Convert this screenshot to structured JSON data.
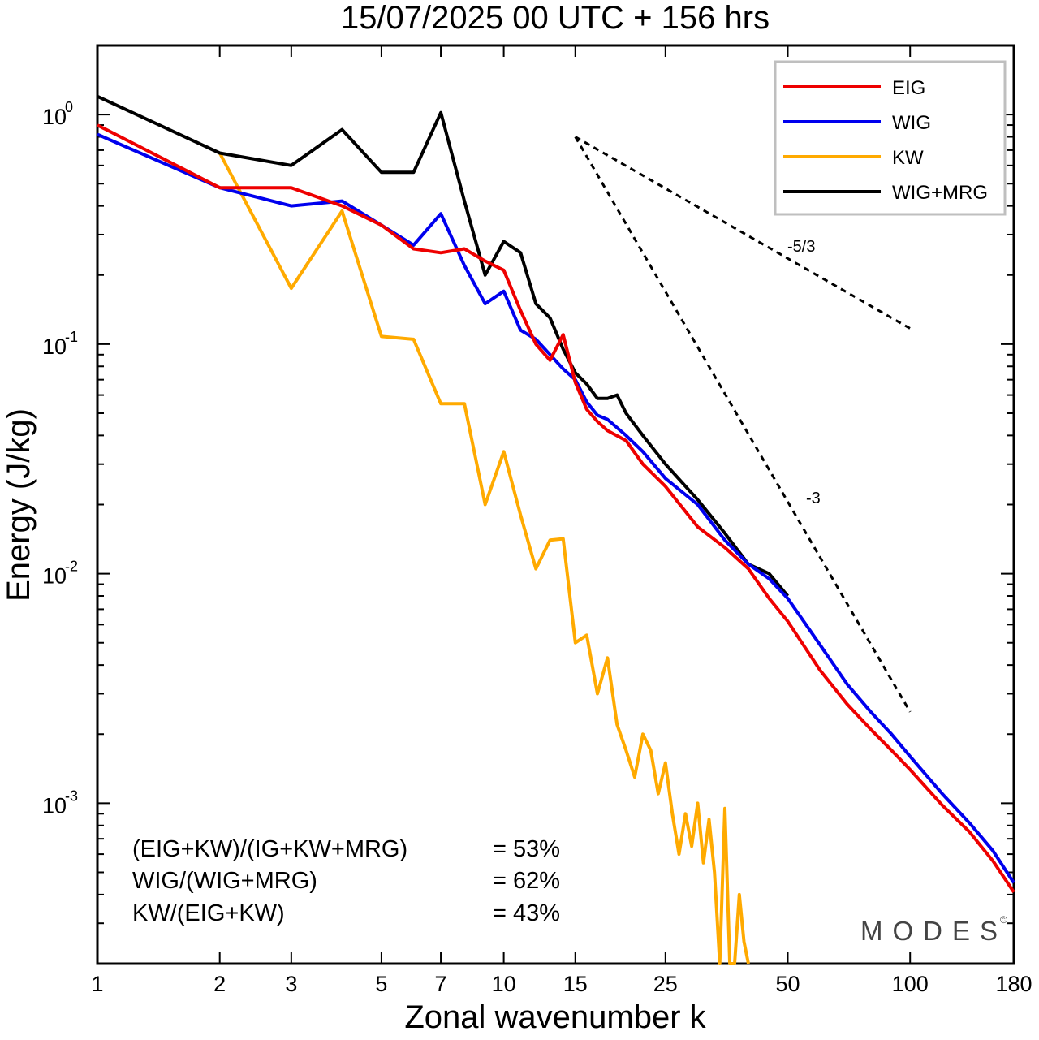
{
  "chart_data": {
    "type": "line",
    "title": "15/07/2025  00 UTC  + 156 hrs",
    "xlabel": "Zonal wavenumber k",
    "ylabel": "Energy (J/kg)",
    "x_scale": "log",
    "y_scale": "log",
    "xlim": [
      1,
      180
    ],
    "ylim": [
      0.0002,
      2.0
    ],
    "grid": false,
    "legend_position": "top-right",
    "x_ticks": [
      1,
      2,
      3,
      5,
      7,
      10,
      15,
      25,
      50,
      100,
      180
    ],
    "x_tick_labels": [
      "1",
      "2",
      "3",
      "5",
      "7",
      "10",
      "15",
      "25",
      "50",
      "100",
      "180"
    ],
    "y_ticks": [
      {
        "value": 1.0,
        "base": "10",
        "exp": "0"
      },
      {
        "value": 0.1,
        "base": "10",
        "exp": "-1"
      },
      {
        "value": 0.01,
        "base": "10",
        "exp": "-2"
      },
      {
        "value": 0.001,
        "base": "10",
        "exp": "-3"
      }
    ],
    "series": [
      {
        "name": "EIG",
        "color": "#ee0000",
        "x": [
          1,
          2,
          3,
          4,
          5,
          6,
          7,
          8,
          9,
          10,
          11,
          12,
          13,
          14,
          15,
          16,
          17,
          18,
          20,
          22,
          25,
          30,
          35,
          40,
          45,
          50,
          60,
          70,
          80,
          90,
          100,
          120,
          140,
          160,
          180
        ],
        "y": [
          0.9,
          0.48,
          0.48,
          0.4,
          0.33,
          0.26,
          0.25,
          0.26,
          0.23,
          0.21,
          0.14,
          0.1,
          0.085,
          0.11,
          0.068,
          0.052,
          0.046,
          0.042,
          0.038,
          0.03,
          0.024,
          0.016,
          0.013,
          0.0105,
          0.0078,
          0.0062,
          0.0038,
          0.0027,
          0.0021,
          0.0017,
          0.0014,
          0.00098,
          0.00075,
          0.00056,
          0.00041
        ]
      },
      {
        "name": "WIG",
        "color": "#0000ee",
        "x": [
          1,
          2,
          3,
          4,
          5,
          6,
          7,
          8,
          9,
          10,
          11,
          12,
          13,
          14,
          15,
          16,
          17,
          18,
          20,
          22,
          25,
          30,
          35,
          40,
          45,
          50,
          60,
          70,
          80,
          90,
          100,
          120,
          140,
          160,
          180
        ],
        "y": [
          0.82,
          0.48,
          0.4,
          0.42,
          0.33,
          0.27,
          0.37,
          0.22,
          0.15,
          0.17,
          0.115,
          0.105,
          0.09,
          0.078,
          0.07,
          0.056,
          0.049,
          0.047,
          0.04,
          0.034,
          0.026,
          0.02,
          0.014,
          0.011,
          0.0095,
          0.0078,
          0.0049,
          0.0033,
          0.0025,
          0.002,
          0.0016,
          0.0011,
          0.00082,
          0.00062,
          0.00045
        ]
      },
      {
        "name": "KW",
        "color": "#ffaa00",
        "x": [
          2,
          3,
          4,
          5,
          6,
          7,
          8,
          9,
          10,
          11,
          12,
          13,
          14,
          15,
          16,
          17,
          18,
          19,
          20,
          21,
          22,
          23,
          24,
          25,
          26,
          27,
          28,
          29,
          30,
          31,
          32,
          33,
          34,
          35,
          36,
          37,
          38,
          39,
          40
        ],
        "y": [
          0.68,
          0.175,
          0.38,
          0.108,
          0.105,
          0.055,
          0.055,
          0.02,
          0.034,
          0.018,
          0.0105,
          0.014,
          0.0142,
          0.005,
          0.0054,
          0.003,
          0.0043,
          0.0022,
          0.0017,
          0.0013,
          0.002,
          0.0017,
          0.0011,
          0.0015,
          0.0009,
          0.0006,
          0.0009,
          0.00065,
          0.001,
          0.00055,
          0.00085,
          0.0005,
          0.0002,
          0.00095,
          0.0002,
          0.0002,
          0.0004,
          0.00025,
          0.0002
        ]
      },
      {
        "name": "WIG+MRG",
        "color": "#000000",
        "x": [
          1,
          2,
          3,
          4,
          5,
          6,
          7,
          8,
          9,
          10,
          11,
          12,
          13,
          14,
          15,
          16,
          17,
          18,
          19,
          20,
          22,
          25,
          30,
          35,
          40,
          45,
          50
        ],
        "y": [
          1.2,
          0.68,
          0.6,
          0.86,
          0.56,
          0.56,
          1.02,
          0.42,
          0.2,
          0.28,
          0.25,
          0.15,
          0.13,
          0.095,
          0.075,
          0.067,
          0.058,
          0.058,
          0.06,
          0.05,
          0.04,
          0.03,
          0.021,
          0.015,
          0.011,
          0.01,
          0.008
        ]
      }
    ],
    "reference_lines": [
      {
        "label": "-5/3",
        "x": [
          15,
          100
        ],
        "y": [
          0.8,
          0.117
        ]
      },
      {
        "label": "-3",
        "x": [
          15,
          100
        ],
        "y": [
          0.8,
          0.0025
        ]
      }
    ],
    "annotations": [
      {
        "label": "(EIG+KW)/(IG+KW+MRG)",
        "value": "= 53%"
      },
      {
        "label": "WIG/(WIG+MRG)",
        "value": "= 62%"
      },
      {
        "label": "KW/(EIG+KW)",
        "value": "= 43%"
      }
    ],
    "branding": "MODES",
    "branding_mark": "©"
  }
}
